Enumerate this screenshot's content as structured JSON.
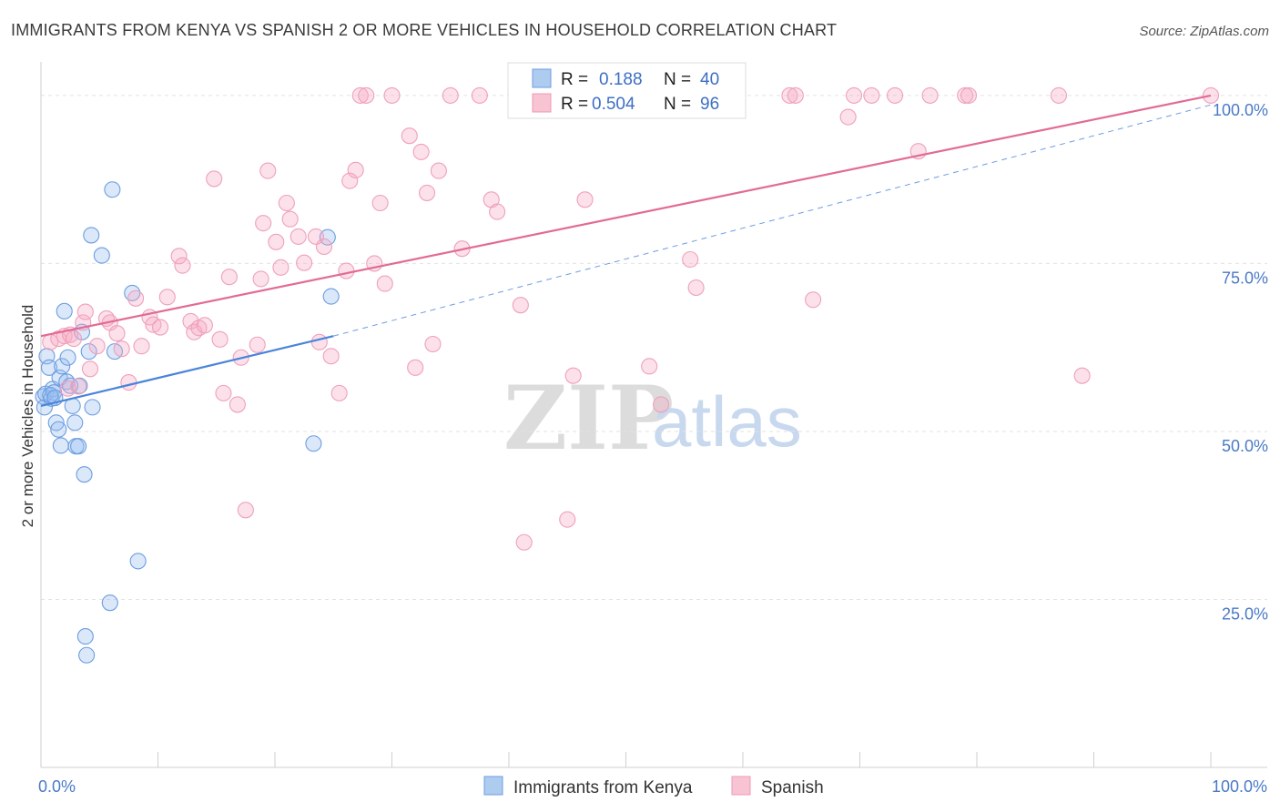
{
  "chart_data": {
    "type": "scatter",
    "title": "IMMIGRANTS FROM KENYA VS SPANISH 2 OR MORE VEHICLES IN HOUSEHOLD CORRELATION CHART",
    "source": "Source: ZipAtlas.com",
    "ylabel": "2 or more Vehicles in Household",
    "xlabel": "",
    "xlim": [
      0,
      100
    ],
    "ylim": [
      0,
      105
    ],
    "x_tick_labels": [
      "0.0%",
      "100.0%"
    ],
    "y_ticks": [
      {
        "value": 25,
        "label": "25.0%"
      },
      {
        "value": 50,
        "label": "50.0%"
      },
      {
        "value": 75,
        "label": "75.0%"
      },
      {
        "value": 100,
        "label": "100.0%"
      }
    ],
    "watermark": {
      "zip": "ZIP",
      "atlas": "atlas"
    },
    "legend": {
      "r_label": "R =",
      "n_label": "N =",
      "entries": [
        {
          "name": "Immigrants from Kenya",
          "r": "0.188",
          "n": "40",
          "fill": "#aecbf0",
          "stroke": "#6d9de0"
        },
        {
          "name": "Spanish",
          "r": "0.504",
          "n": "96",
          "fill": "#f8c3d3",
          "stroke": "#ef9ab5"
        }
      ]
    },
    "series": [
      {
        "name": "Immigrants from Kenya",
        "color": "#4a85d9",
        "fill": "rgba(150,190,240,0.35)",
        "trend": {
          "x0": 0,
          "y0": 53.8,
          "x1": 25,
          "y1": 64.2,
          "dash_to_x": 100,
          "dash_to_y": 98.6
        },
        "points": [
          [
            0.2,
            55.2
          ],
          [
            0.3,
            53.6
          ],
          [
            0.4,
            55.6
          ],
          [
            0.5,
            61.2
          ],
          [
            0.7,
            59.5
          ],
          [
            0.9,
            54.9
          ],
          [
            1.0,
            56.3
          ],
          [
            1.1,
            55.8
          ],
          [
            1.3,
            51.3
          ],
          [
            1.5,
            50.3
          ],
          [
            1.6,
            58.0
          ],
          [
            1.7,
            47.9
          ],
          [
            1.8,
            59.7
          ],
          [
            2.0,
            67.9
          ],
          [
            2.2,
            57.4
          ],
          [
            2.3,
            61.0
          ],
          [
            2.5,
            56.8
          ],
          [
            2.7,
            53.8
          ],
          [
            2.9,
            51.3
          ],
          [
            3.0,
            47.8
          ],
          [
            3.2,
            47.8
          ],
          [
            3.3,
            56.8
          ],
          [
            3.5,
            64.8
          ],
          [
            3.7,
            43.6
          ],
          [
            3.8,
            19.5
          ],
          [
            3.9,
            16.7
          ],
          [
            4.1,
            61.9
          ],
          [
            4.3,
            79.2
          ],
          [
            4.4,
            53.6
          ],
          [
            5.2,
            76.2
          ],
          [
            5.9,
            24.5
          ],
          [
            6.1,
            86.0
          ],
          [
            6.3,
            61.9
          ],
          [
            7.8,
            70.6
          ],
          [
            8.3,
            30.7
          ],
          [
            23.3,
            48.2
          ],
          [
            24.5,
            78.9
          ],
          [
            24.8,
            70.1
          ],
          [
            0.8,
            55.4
          ],
          [
            1.2,
            55.0
          ]
        ]
      },
      {
        "name": "Spanish",
        "color": "#e26b96",
        "fill": "rgba(245,170,195,0.35)",
        "trend": {
          "x0": 0,
          "y0": 64.2,
          "x1": 100,
          "y1": 100.0
        },
        "points": [
          [
            0.8,
            63.3
          ],
          [
            1.5,
            63.8
          ],
          [
            2.0,
            64.2
          ],
          [
            2.3,
            56.4
          ],
          [
            2.5,
            64.4
          ],
          [
            2.8,
            63.8
          ],
          [
            3.2,
            56.7
          ],
          [
            3.6,
            66.2
          ],
          [
            3.8,
            67.8
          ],
          [
            4.2,
            59.3
          ],
          [
            4.8,
            62.7
          ],
          [
            5.6,
            66.8
          ],
          [
            5.9,
            66.2
          ],
          [
            6.5,
            64.6
          ],
          [
            6.9,
            62.3
          ],
          [
            7.5,
            57.3
          ],
          [
            8.1,
            69.8
          ],
          [
            8.6,
            62.7
          ],
          [
            9.3,
            67.0
          ],
          [
            9.6,
            65.9
          ],
          [
            10.2,
            65.5
          ],
          [
            10.8,
            70.0
          ],
          [
            11.8,
            76.1
          ],
          [
            12.1,
            74.7
          ],
          [
            12.8,
            66.4
          ],
          [
            13.1,
            64.8
          ],
          [
            13.5,
            65.4
          ],
          [
            14.0,
            65.8
          ],
          [
            14.8,
            87.6
          ],
          [
            15.3,
            63.7
          ],
          [
            15.6,
            55.7
          ],
          [
            16.1,
            73.0
          ],
          [
            16.8,
            54.0
          ],
          [
            17.1,
            61.0
          ],
          [
            17.5,
            38.3
          ],
          [
            18.5,
            62.9
          ],
          [
            18.8,
            72.7
          ],
          [
            19.0,
            81.0
          ],
          [
            19.4,
            88.8
          ],
          [
            20.1,
            78.2
          ],
          [
            20.5,
            74.4
          ],
          [
            21.0,
            84.0
          ],
          [
            21.3,
            81.6
          ],
          [
            22.0,
            79.0
          ],
          [
            22.5,
            75.1
          ],
          [
            23.5,
            79.0
          ],
          [
            23.8,
            63.3
          ],
          [
            24.2,
            77.5
          ],
          [
            24.8,
            61.2
          ],
          [
            25.5,
            55.7
          ],
          [
            26.1,
            73.9
          ],
          [
            26.4,
            87.3
          ],
          [
            26.9,
            88.9
          ],
          [
            27.3,
            100.0
          ],
          [
            27.8,
            100.0
          ],
          [
            28.5,
            75.0
          ],
          [
            29.0,
            84.0
          ],
          [
            29.4,
            72.0
          ],
          [
            30.0,
            100.0
          ],
          [
            31.5,
            94.0
          ],
          [
            32.0,
            59.5
          ],
          [
            32.5,
            91.6
          ],
          [
            33.0,
            85.5
          ],
          [
            33.5,
            63.0
          ],
          [
            34.0,
            88.8
          ],
          [
            35.0,
            100.0
          ],
          [
            36.0,
            77.2
          ],
          [
            37.5,
            100.0
          ],
          [
            38.5,
            84.5
          ],
          [
            39.0,
            82.7
          ],
          [
            41.0,
            68.8
          ],
          [
            41.3,
            33.5
          ],
          [
            44.0,
            100.0
          ],
          [
            45.0,
            36.9
          ],
          [
            45.5,
            58.3
          ],
          [
            46.5,
            84.5
          ],
          [
            48.0,
            100.0
          ],
          [
            52.0,
            59.7
          ],
          [
            53.0,
            54.0
          ],
          [
            55.0,
            100.0
          ],
          [
            55.5,
            75.6
          ],
          [
            56.0,
            71.4
          ],
          [
            64.0,
            100.0
          ],
          [
            66.0,
            69.6
          ],
          [
            69.0,
            96.8
          ],
          [
            71.0,
            100.0
          ],
          [
            73.0,
            100.0
          ],
          [
            75.0,
            91.7
          ],
          [
            76.0,
            100.0
          ],
          [
            79.0,
            100.0
          ],
          [
            79.3,
            100.0
          ],
          [
            87.0,
            100.0
          ],
          [
            89.0,
            58.3
          ],
          [
            100.0,
            100.0
          ],
          [
            64.5,
            100.0
          ],
          [
            69.5,
            100.0
          ]
        ]
      }
    ]
  }
}
